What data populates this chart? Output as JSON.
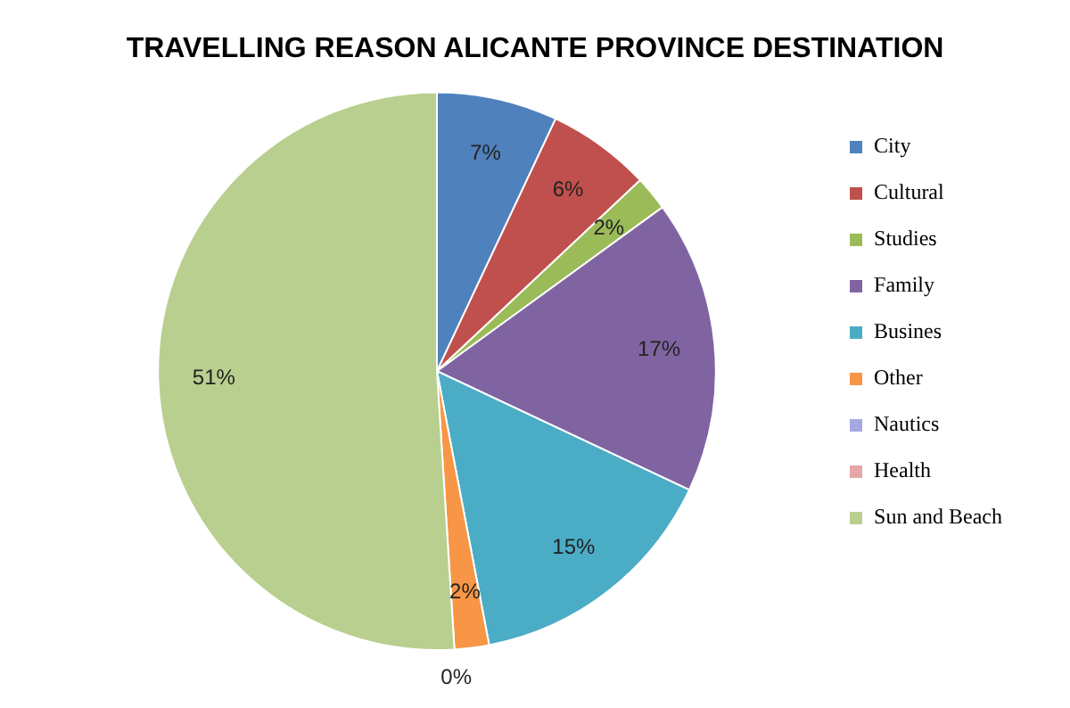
{
  "chart_data": {
    "type": "pie",
    "title": "TRAVELLING REASON ALICANTE PROVINCE DESTINATION",
    "categories": [
      "City",
      "Cultural",
      "Studies",
      "Family",
      "Busines",
      "Other",
      "Nautics",
      "Health",
      "Sun and Beach"
    ],
    "values": [
      7,
      6,
      2,
      17,
      15,
      2,
      0,
      0,
      51
    ],
    "colors": [
      "#4f81bd",
      "#c0504d",
      "#9bbb59",
      "#8064a2",
      "#4bacc6",
      "#f79646",
      "#a5a9e0",
      "#e6a5a8",
      "#b8cf8f"
    ],
    "value_labels": [
      "7%",
      "6%",
      "2%",
      "17%",
      "15%",
      "2%",
      "0%",
      null,
      "51%"
    ],
    "legend": "right"
  }
}
